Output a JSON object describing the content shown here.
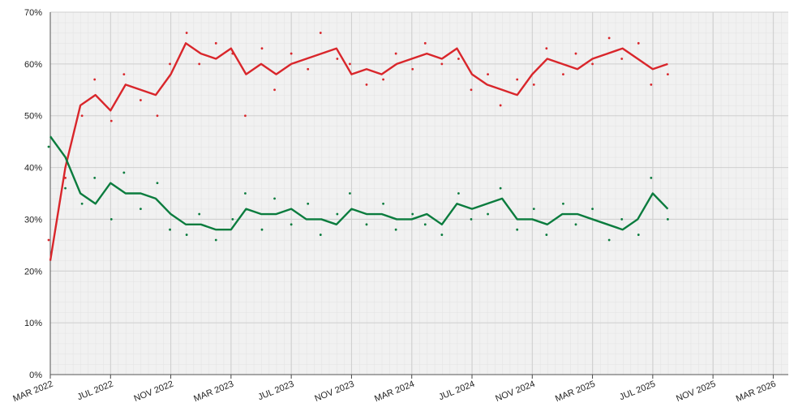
{
  "chart_data": {
    "type": "line",
    "x": [
      "2022-03",
      "2022-04",
      "2022-05",
      "2022-06",
      "2022-07",
      "2022-08",
      "2022-09",
      "2022-10",
      "2022-11",
      "2022-12",
      "2023-01",
      "2023-02",
      "2023-03",
      "2023-04",
      "2023-05",
      "2023-06",
      "2023-07",
      "2023-08",
      "2023-09",
      "2023-10",
      "2023-11",
      "2023-12",
      "2024-01",
      "2024-02",
      "2024-03",
      "2024-04",
      "2024-05",
      "2024-06",
      "2024-07",
      "2024-08",
      "2024-09",
      "2024-10",
      "2024-11",
      "2024-12",
      "2025-01",
      "2025-02",
      "2025-03",
      "2025-04",
      "2025-05",
      "2025-06",
      "2025-07",
      "2025-08"
    ],
    "series": [
      {
        "color": "#d9262b",
        "style": "line",
        "values": [
          22,
          40,
          52,
          54,
          51,
          56,
          55,
          54,
          58,
          64,
          62,
          61,
          63,
          58,
          60,
          58,
          60,
          61,
          62,
          63,
          58,
          59,
          58,
          60,
          61,
          62,
          61,
          63,
          58,
          56,
          55,
          54,
          58,
          61,
          60,
          59,
          61,
          62,
          63,
          61,
          59,
          60
        ]
      },
      {
        "color": "#0b7c3e",
        "style": "line",
        "values": [
          46,
          42,
          35,
          33,
          37,
          35,
          35,
          34,
          31,
          29,
          29,
          28,
          28,
          32,
          31,
          31,
          32,
          30,
          30,
          29,
          32,
          31,
          31,
          30,
          30,
          31,
          29,
          33,
          32,
          33,
          34,
          30,
          30,
          29,
          31,
          31,
          30,
          29,
          28,
          30,
          35,
          32
        ]
      },
      {
        "color": "#d9262b",
        "style": "points",
        "values": [
          26,
          38,
          50,
          57,
          49,
          58,
          53,
          50,
          60,
          66,
          60,
          64,
          62,
          50,
          63,
          55,
          62,
          59,
          66,
          61,
          60,
          56,
          57,
          62,
          59,
          64,
          60,
          61,
          55,
          58,
          52,
          57,
          56,
          63,
          58,
          62,
          60,
          65,
          61,
          64,
          56,
          58
        ]
      },
      {
        "color": "#0b7c3e",
        "style": "points",
        "values": [
          44,
          36,
          33,
          38,
          30,
          39,
          32,
          37,
          28,
          27,
          31,
          26,
          30,
          35,
          28,
          34,
          29,
          33,
          27,
          31,
          35,
          29,
          33,
          28,
          31,
          29,
          27,
          35,
          30,
          31,
          36,
          28,
          32,
          27,
          33,
          29,
          32,
          26,
          30,
          27,
          38,
          30
        ]
      }
    ],
    "xlim": [
      "2022-03",
      "2026-04"
    ],
    "xticks": [
      {
        "value": "2022-03",
        "label": "MAR 2022"
      },
      {
        "value": "2022-07",
        "label": "JUL 2022"
      },
      {
        "value": "2022-11",
        "label": "NOV 2022"
      },
      {
        "value": "2023-03",
        "label": "MAR 2023"
      },
      {
        "value": "2023-07",
        "label": "JUL 2023"
      },
      {
        "value": "2023-11",
        "label": "NOV 2023"
      },
      {
        "value": "2024-03",
        "label": "MAR 2024"
      },
      {
        "value": "2024-07",
        "label": "JUL 2024"
      },
      {
        "value": "2024-11",
        "label": "NOV 2024"
      },
      {
        "value": "2025-03",
        "label": "MAR 2025"
      },
      {
        "value": "2025-07",
        "label": "JUL 2025"
      },
      {
        "value": "2025-11",
        "label": "NOV 2025"
      },
      {
        "value": "2026-03",
        "label": "MAR 2026"
      }
    ],
    "ylim": [
      0,
      70
    ],
    "yticks": [
      {
        "value": 0,
        "label": "0%"
      },
      {
        "value": 10,
        "label": "10%"
      },
      {
        "value": 20,
        "label": "20%"
      },
      {
        "value": 30,
        "label": "30%"
      },
      {
        "value": 40,
        "label": "40%"
      },
      {
        "value": 50,
        "label": "50%"
      },
      {
        "value": 60,
        "label": "60%"
      },
      {
        "value": 70,
        "label": "70%"
      }
    ],
    "grid": true
  }
}
